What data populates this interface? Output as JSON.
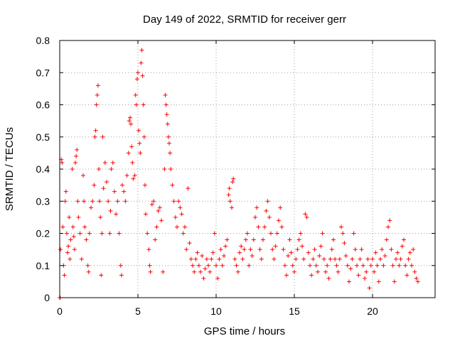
{
  "chart_data": {
    "type": "scatter",
    "title": "Day 149 of 2022, SRMTID for receiver gerr",
    "xlabel": "GPS time / hours",
    "ylabel": "SRMTID / TECUs",
    "xlim": [
      0,
      24
    ],
    "ylim": [
      0,
      0.8
    ],
    "xticks": [
      0,
      5,
      10,
      15,
      20
    ],
    "yticks": [
      0,
      0.1,
      0.2,
      0.3,
      0.4,
      0.5,
      0.6,
      0.7,
      0.8
    ],
    "xtick_labels": [
      "0",
      "5",
      "10",
      "15",
      "20"
    ],
    "ytick_labels": [
      "0",
      "0.1",
      "0.2",
      "0.3",
      "0.4",
      "0.5",
      "0.6",
      "0.7",
      "0.8"
    ],
    "grid": true,
    "marker": "+",
    "series": [
      {
        "name": "SRMTID",
        "color": "#ff0000",
        "points": [
          [
            0.0,
            0.0
          ],
          [
            0.03,
            0.0
          ],
          [
            0.05,
            0.15
          ],
          [
            0.1,
            0.43
          ],
          [
            0.15,
            0.42
          ],
          [
            0.2,
            0.22
          ],
          [
            0.25,
            0.1
          ],
          [
            0.3,
            0.07
          ],
          [
            0.35,
            0.3
          ],
          [
            0.4,
            0.33
          ],
          [
            0.45,
            0.2
          ],
          [
            0.5,
            0.14
          ],
          [
            0.55,
            0.16
          ],
          [
            0.6,
            0.25
          ],
          [
            0.65,
            0.12
          ],
          [
            0.7,
            0.18
          ],
          [
            0.8,
            0.4
          ],
          [
            0.85,
            0.22
          ],
          [
            0.9,
            0.19
          ],
          [
            0.95,
            0.15
          ],
          [
            1.0,
            0.42
          ],
          [
            1.05,
            0.44
          ],
          [
            1.1,
            0.46
          ],
          [
            1.15,
            0.3
          ],
          [
            1.2,
            0.25
          ],
          [
            1.3,
            0.2
          ],
          [
            1.4,
            0.12
          ],
          [
            1.5,
            0.38
          ],
          [
            1.55,
            0.3
          ],
          [
            1.6,
            0.22
          ],
          [
            1.7,
            0.18
          ],
          [
            1.8,
            0.1
          ],
          [
            1.85,
            0.08
          ],
          [
            1.9,
            0.2
          ],
          [
            2.0,
            0.28
          ],
          [
            2.1,
            0.3
          ],
          [
            2.2,
            0.35
          ],
          [
            2.25,
            0.5
          ],
          [
            2.3,
            0.52
          ],
          [
            2.35,
            0.6
          ],
          [
            2.4,
            0.63
          ],
          [
            2.45,
            0.66
          ],
          [
            2.5,
            0.4
          ],
          [
            2.55,
            0.3
          ],
          [
            2.6,
            0.25
          ],
          [
            2.65,
            0.07
          ],
          [
            2.7,
            0.2
          ],
          [
            2.75,
            0.5
          ],
          [
            2.8,
            0.34
          ],
          [
            2.9,
            0.42
          ],
          [
            3.0,
            0.36
          ],
          [
            3.1,
            0.3
          ],
          [
            3.2,
            0.2
          ],
          [
            3.25,
            0.27
          ],
          [
            3.3,
            0.4
          ],
          [
            3.4,
            0.42
          ],
          [
            3.5,
            0.33
          ],
          [
            3.6,
            0.26
          ],
          [
            3.7,
            0.3
          ],
          [
            3.8,
            0.2
          ],
          [
            3.9,
            0.1
          ],
          [
            3.95,
            0.07
          ],
          [
            4.0,
            0.35
          ],
          [
            4.1,
            0.33
          ],
          [
            4.2,
            0.3
          ],
          [
            4.3,
            0.38
          ],
          [
            4.4,
            0.45
          ],
          [
            4.45,
            0.55
          ],
          [
            4.5,
            0.56
          ],
          [
            4.55,
            0.54
          ],
          [
            4.6,
            0.47
          ],
          [
            4.65,
            0.42
          ],
          [
            4.7,
            0.37
          ],
          [
            4.8,
            0.38
          ],
          [
            4.85,
            0.63
          ],
          [
            4.9,
            0.6
          ],
          [
            4.95,
            0.68
          ],
          [
            5.0,
            0.7
          ],
          [
            5.05,
            0.52
          ],
          [
            5.1,
            0.48
          ],
          [
            5.15,
            0.45
          ],
          [
            5.2,
            0.73
          ],
          [
            5.25,
            0.77
          ],
          [
            5.3,
            0.69
          ],
          [
            5.35,
            0.6
          ],
          [
            5.4,
            0.5
          ],
          [
            5.45,
            0.35
          ],
          [
            5.5,
            0.26
          ],
          [
            5.6,
            0.2
          ],
          [
            5.7,
            0.15
          ],
          [
            5.75,
            0.1
          ],
          [
            5.8,
            0.08
          ],
          [
            5.9,
            0.29
          ],
          [
            6.0,
            0.3
          ],
          [
            6.1,
            0.18
          ],
          [
            6.2,
            0.22
          ],
          [
            6.3,
            0.27
          ],
          [
            6.4,
            0.28
          ],
          [
            6.5,
            0.24
          ],
          [
            6.6,
            0.08
          ],
          [
            6.7,
            0.4
          ],
          [
            6.75,
            0.63
          ],
          [
            6.8,
            0.6
          ],
          [
            6.85,
            0.57
          ],
          [
            6.9,
            0.54
          ],
          [
            6.95,
            0.5
          ],
          [
            7.0,
            0.48
          ],
          [
            7.05,
            0.45
          ],
          [
            7.1,
            0.4
          ],
          [
            7.2,
            0.35
          ],
          [
            7.3,
            0.3
          ],
          [
            7.4,
            0.25
          ],
          [
            7.5,
            0.22
          ],
          [
            7.6,
            0.3
          ],
          [
            7.7,
            0.28
          ],
          [
            7.8,
            0.26
          ],
          [
            7.9,
            0.2
          ],
          [
            8.0,
            0.22
          ],
          [
            8.1,
            0.15
          ],
          [
            8.2,
            0.34
          ],
          [
            8.3,
            0.17
          ],
          [
            8.4,
            0.12
          ],
          [
            8.5,
            0.1
          ],
          [
            8.6,
            0.08
          ],
          [
            8.7,
            0.12
          ],
          [
            8.8,
            0.14
          ],
          [
            8.9,
            0.1
          ],
          [
            9.0,
            0.08
          ],
          [
            9.1,
            0.13
          ],
          [
            9.2,
            0.06
          ],
          [
            9.3,
            0.09
          ],
          [
            9.4,
            0.12
          ],
          [
            9.5,
            0.1
          ],
          [
            9.6,
            0.08
          ],
          [
            9.7,
            0.12
          ],
          [
            9.8,
            0.14
          ],
          [
            9.9,
            0.2
          ],
          [
            10.0,
            0.1
          ],
          [
            10.1,
            0.06
          ],
          [
            10.2,
            0.12
          ],
          [
            10.3,
            0.15
          ],
          [
            10.4,
            0.1
          ],
          [
            10.5,
            0.13
          ],
          [
            10.6,
            0.16
          ],
          [
            10.7,
            0.18
          ],
          [
            10.8,
            0.32
          ],
          [
            10.85,
            0.34
          ],
          [
            10.9,
            0.3
          ],
          [
            11.0,
            0.28
          ],
          [
            11.05,
            0.36
          ],
          [
            11.1,
            0.37
          ],
          [
            11.2,
            0.12
          ],
          [
            11.3,
            0.1
          ],
          [
            11.4,
            0.08
          ],
          [
            11.5,
            0.14
          ],
          [
            11.6,
            0.16
          ],
          [
            11.7,
            0.12
          ],
          [
            11.8,
            0.15
          ],
          [
            11.9,
            0.18
          ],
          [
            12.0,
            0.2
          ],
          [
            12.1,
            0.1
          ],
          [
            12.2,
            0.15
          ],
          [
            12.3,
            0.13
          ],
          [
            12.4,
            0.18
          ],
          [
            12.5,
            0.25
          ],
          [
            12.6,
            0.28
          ],
          [
            12.7,
            0.22
          ],
          [
            12.8,
            0.15
          ],
          [
            12.9,
            0.12
          ],
          [
            13.0,
            0.18
          ],
          [
            13.1,
            0.22
          ],
          [
            13.2,
            0.27
          ],
          [
            13.3,
            0.3
          ],
          [
            13.4,
            0.25
          ],
          [
            13.5,
            0.2
          ],
          [
            13.6,
            0.15
          ],
          [
            13.7,
            0.12
          ],
          [
            13.8,
            0.16
          ],
          [
            13.9,
            0.2
          ],
          [
            14.0,
            0.24
          ],
          [
            14.1,
            0.28
          ],
          [
            14.2,
            0.22
          ],
          [
            14.3,
            0.15
          ],
          [
            14.4,
            0.1
          ],
          [
            14.5,
            0.07
          ],
          [
            14.6,
            0.13
          ],
          [
            14.7,
            0.18
          ],
          [
            14.8,
            0.14
          ],
          [
            14.9,
            0.1
          ],
          [
            15.0,
            0.08
          ],
          [
            15.1,
            0.12
          ],
          [
            15.2,
            0.15
          ],
          [
            15.3,
            0.18
          ],
          [
            15.4,
            0.2
          ],
          [
            15.5,
            0.16
          ],
          [
            15.6,
            0.12
          ],
          [
            15.7,
            0.26
          ],
          [
            15.8,
            0.25
          ],
          [
            15.9,
            0.14
          ],
          [
            16.0,
            0.1
          ],
          [
            16.1,
            0.07
          ],
          [
            16.2,
            0.12
          ],
          [
            16.3,
            0.15
          ],
          [
            16.4,
            0.1
          ],
          [
            16.5,
            0.08
          ],
          [
            16.6,
            0.13
          ],
          [
            16.7,
            0.16
          ],
          [
            16.8,
            0.2
          ],
          [
            16.9,
            0.12
          ],
          [
            17.0,
            0.08
          ],
          [
            17.1,
            0.1
          ],
          [
            17.2,
            0.06
          ],
          [
            17.3,
            0.12
          ],
          [
            17.4,
            0.15
          ],
          [
            17.5,
            0.18
          ],
          [
            17.6,
            0.12
          ],
          [
            17.7,
            0.1
          ],
          [
            17.8,
            0.08
          ],
          [
            17.9,
            0.12
          ],
          [
            18.0,
            0.22
          ],
          [
            18.1,
            0.2
          ],
          [
            18.2,
            0.17
          ],
          [
            18.3,
            0.13
          ],
          [
            18.4,
            0.1
          ],
          [
            18.5,
            0.05
          ],
          [
            18.6,
            0.09
          ],
          [
            18.7,
            0.12
          ],
          [
            18.8,
            0.2
          ],
          [
            18.9,
            0.15
          ],
          [
            19.0,
            0.1
          ],
          [
            19.1,
            0.07
          ],
          [
            19.2,
            0.12
          ],
          [
            19.3,
            0.15
          ],
          [
            19.4,
            0.1
          ],
          [
            19.5,
            0.06
          ],
          [
            19.6,
            0.08
          ],
          [
            19.7,
            0.12
          ],
          [
            19.8,
            0.03
          ],
          [
            19.9,
            0.1
          ],
          [
            20.0,
            0.12
          ],
          [
            20.1,
            0.08
          ],
          [
            20.2,
            0.14
          ],
          [
            20.3,
            0.1
          ],
          [
            20.4,
            0.05
          ],
          [
            20.5,
            0.12
          ],
          [
            20.6,
            0.15
          ],
          [
            20.7,
            0.1
          ],
          [
            20.8,
            0.13
          ],
          [
            20.9,
            0.18
          ],
          [
            21.0,
            0.22
          ],
          [
            21.1,
            0.24
          ],
          [
            21.2,
            0.15
          ],
          [
            21.3,
            0.1
          ],
          [
            21.4,
            0.05
          ],
          [
            21.5,
            0.12
          ],
          [
            21.6,
            0.14
          ],
          [
            21.7,
            0.1
          ],
          [
            21.8,
            0.12
          ],
          [
            21.9,
            0.16
          ],
          [
            22.0,
            0.18
          ],
          [
            22.1,
            0.1
          ],
          [
            22.2,
            0.07
          ],
          [
            22.3,
            0.12
          ],
          [
            22.4,
            0.14
          ],
          [
            22.5,
            0.1
          ],
          [
            22.6,
            0.15
          ],
          [
            22.7,
            0.08
          ],
          [
            22.8,
            0.06
          ],
          [
            22.9,
            0.05
          ]
        ]
      }
    ]
  }
}
